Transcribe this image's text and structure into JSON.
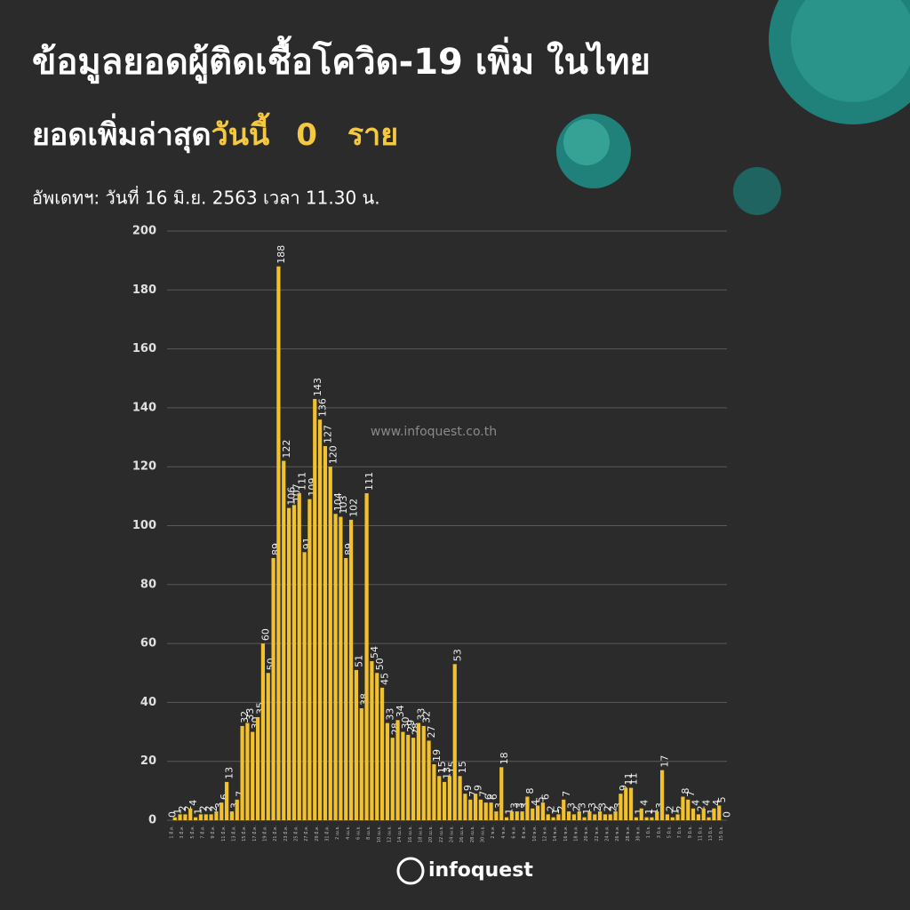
{
  "header": {
    "title": "ข้อมูลยอดผู้ติดเชื้อโควิด-19 เพิ่ม ในไทย",
    "subtitle_lead": "ยอดเพิ่มล่าสุด",
    "subtitle_today": "วันนี้",
    "subtitle_count": "0",
    "subtitle_unit": "ราย",
    "update": "อัพเดทฯ: วันที่  16 มิ.ย. 2563 เวลา 11.30 น."
  },
  "watermark": "www.infoquest.co.th",
  "logo": "infoquest",
  "chart_data": {
    "type": "bar",
    "color": "#f2c12e",
    "grid": true,
    "ylim": [
      0,
      200
    ],
    "yticks": [
      0,
      20,
      40,
      60,
      80,
      100,
      120,
      140,
      160,
      180,
      200
    ],
    "categories": [
      "1 มี.ค.",
      null,
      "3 มี.ค.",
      null,
      "5 มี.ค.",
      null,
      "7 มี.ค.",
      null,
      "9 มี.ค.",
      null,
      "11 มี.ค.",
      null,
      "13 มี.ค.",
      null,
      "15 มี.ค.",
      null,
      "17 มี.ค.",
      null,
      "19 มี.ค.",
      null,
      "21 มี.ค.",
      null,
      "23 มี.ค.",
      null,
      "25 มี.ค.",
      null,
      "27 มี.ค.",
      null,
      "29 มี.ค.",
      null,
      "31 มี.ค.",
      null,
      "2 เม.ย.",
      null,
      "4 เม.ย.",
      null,
      "6 เม.ย.",
      null,
      "8 เม.ย.",
      null,
      "10 เม.ย.",
      null,
      "12 เม.ย.",
      null,
      "14 เม.ย.",
      null,
      "16 เม.ย.",
      null,
      "18 เม.ย.",
      null,
      "20 เม.ย.",
      null,
      "22 เม.ย.",
      null,
      "24 เม.ย.",
      null,
      "26 เม.ย.",
      null,
      "28 เม.ย.",
      null,
      "30 เม.ย.",
      null,
      "2 พ.ค.",
      null,
      "4 พ.ค.",
      null,
      "6 พ.ค.",
      null,
      "8 พ.ค.",
      null,
      "10 พ.ค.",
      null,
      "12 พ.ค.",
      null,
      "14 พ.ค.",
      null,
      "16 พ.ค.",
      null,
      "18 พ.ค.",
      null,
      "20 พ.ค.",
      null,
      "22 พ.ค.",
      null,
      "24 พ.ค.",
      null,
      "26 พ.ค.",
      null,
      "28 พ.ค.",
      null,
      "30 พ.ค.",
      null,
      "1 มิ.ย.",
      null,
      "3 มิ.ย.",
      null,
      "5 มิ.ย.",
      null,
      "7 มิ.ย.",
      null,
      "9 มิ.ย.",
      null,
      "11 มิ.ย.",
      null,
      "13 มิ.ย.",
      null,
      "15 มิ.ย.",
      null
    ],
    "values": [
      0,
      1,
      2,
      2,
      4,
      1,
      2,
      2,
      2,
      3,
      6,
      13,
      3,
      7,
      32,
      33,
      30,
      35,
      60,
      50,
      89,
      188,
      122,
      106,
      107,
      111,
      91,
      109,
      143,
      136,
      127,
      120,
      104,
      103,
      89,
      102,
      51,
      38,
      111,
      54,
      50,
      45,
      33,
      28,
      34,
      30,
      29,
      28,
      33,
      32,
      27,
      19,
      15,
      13,
      15,
      53,
      15,
      9,
      7,
      9,
      7,
      6,
      6,
      3,
      18,
      1,
      3,
      3,
      3,
      8,
      4,
      5,
      6,
      2,
      1,
      2,
      7,
      3,
      2,
      3,
      1,
      3,
      2,
      3,
      2,
      2,
      3,
      9,
      11,
      11,
      1,
      4,
      1,
      1,
      3,
      17,
      2,
      1,
      2,
      8,
      7,
      4,
      2,
      4,
      1,
      4,
      5,
      0
    ]
  }
}
